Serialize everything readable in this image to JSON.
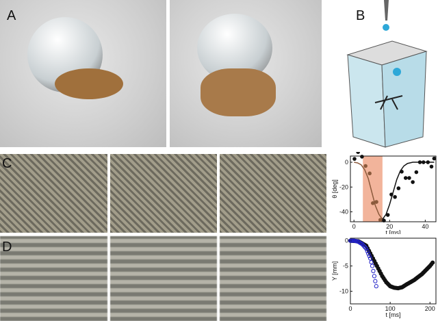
{
  "panels": {
    "a": "A",
    "b": "B",
    "c": "C",
    "d": "D"
  },
  "colors": {
    "shade": "#f2b49b",
    "brown": "#8b5a3c",
    "blue": "#2323c8",
    "black": "#111111"
  },
  "chart_data": [
    {
      "type": "scatter",
      "xlabel": "t [ms]",
      "ylabel": "θ [deg]",
      "xlim": [
        -2,
        46
      ],
      "ylim": [
        -48,
        5
      ],
      "xticks": [
        0,
        20,
        40
      ],
      "yticks": [
        0,
        -20,
        -40
      ],
      "shaded_region": [
        5,
        16
      ],
      "points": [
        [
          0.3,
          2.7
        ],
        [
          2.3,
          8.2
        ],
        [
          4.5,
          4.5
        ],
        [
          6.5,
          -3
        ],
        [
          8.8,
          -9
        ],
        [
          10.6,
          -33
        ],
        [
          12.6,
          -32
        ],
        [
          14.8,
          -46.5
        ],
        [
          16.8,
          -47
        ],
        [
          19,
          -42.5
        ],
        [
          21,
          -26
        ],
        [
          23,
          -28
        ],
        [
          25,
          -21
        ],
        [
          26.8,
          -7.6
        ],
        [
          29,
          -12.7
        ],
        [
          31,
          -12.7
        ],
        [
          33,
          -16
        ],
        [
          35,
          -8
        ],
        [
          37,
          0
        ],
        [
          39,
          0
        ],
        [
          41.5,
          0
        ],
        [
          43.5,
          -3.5
        ],
        [
          45,
          3
        ]
      ],
      "fit_curves": [
        {
          "color": "brown",
          "points": [
            [
              0,
              0
            ],
            [
              2,
              -0.5
            ],
            [
              4,
              -2
            ],
            [
              6,
              -6
            ],
            [
              8,
              -13
            ],
            [
              10,
              -24
            ],
            [
              12,
              -35
            ],
            [
              14,
              -42
            ],
            [
              16,
              -46
            ]
          ]
        },
        {
          "color": "black",
          "points": [
            [
              16,
              -46
            ],
            [
              18,
              -42
            ],
            [
              20,
              -34
            ],
            [
              22,
              -24
            ],
            [
              24,
              -14
            ],
            [
              26,
              -7
            ],
            [
              28,
              -3
            ],
            [
              30,
              -1
            ],
            [
              33,
              0
            ],
            [
              45,
              0
            ]
          ]
        }
      ]
    },
    {
      "type": "scatter",
      "xlabel": "t [ms]",
      "ylabel": "Y [mm]",
      "xlim": [
        0,
        215
      ],
      "ylim": [
        -12.5,
        0.5
      ],
      "xticks": [
        0,
        100,
        200
      ],
      "yticks": [
        0,
        -5,
        -10
      ],
      "series": [
        {
          "color": "black",
          "marker": "filled",
          "points": [
            [
              0,
              0
            ],
            [
              20,
              -0.1
            ],
            [
              40,
              -1
            ],
            [
              50,
              -2.5
            ],
            [
              60,
              -4
            ],
            [
              70,
              -5.5
            ],
            [
              80,
              -7
            ],
            [
              90,
              -8.2
            ],
            [
              100,
              -9
            ],
            [
              110,
              -9.3
            ],
            [
              120,
              -9.4
            ],
            [
              130,
              -9.2
            ],
            [
              140,
              -8.7
            ],
            [
              160,
              -7.8
            ],
            [
              180,
              -6.6
            ],
            [
              200,
              -5
            ],
            [
              210,
              -4
            ]
          ]
        },
        {
          "color": "blue",
          "marker": "open",
          "points": [
            [
              0,
              0
            ],
            [
              10,
              0
            ],
            [
              20,
              -0.2
            ],
            [
              30,
              -0.7
            ],
            [
              40,
              -1.6
            ],
            [
              50,
              -3.5
            ],
            [
              55,
              -5
            ],
            [
              60,
              -7
            ],
            [
              65,
              -9
            ],
            [
              68,
              -11
            ]
          ]
        }
      ]
    }
  ]
}
